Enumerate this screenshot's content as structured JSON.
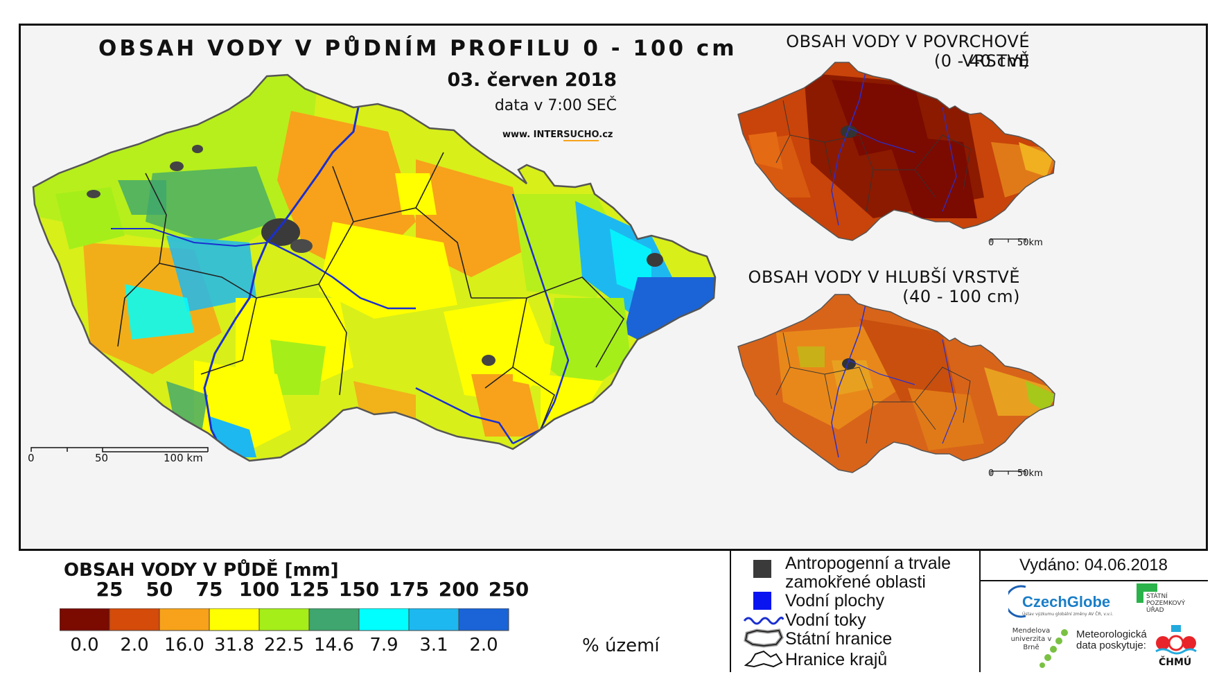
{
  "main_map": {
    "title": "OBSAH VODY V PŮDNÍM PROFILU 0 - 100 cm",
    "date": "03. červen 2018",
    "time_note": "data v 7:00 SEČ",
    "website_prefix": "www. INTER",
    "website_highlight": "SUCHO",
    "website_suffix": ".cz",
    "scale": {
      "tick_0": "0",
      "tick_50": "50",
      "tick_100": "100 km"
    }
  },
  "surface_map": {
    "title": "OBSAH VODY V POVRCHOVÉ VRSTVĚ",
    "range": "(0 - 40 cm)",
    "scale": {
      "tick_0": "0",
      "tick_50": "50km"
    }
  },
  "deep_map": {
    "title": "OBSAH VODY V HLUBŠÍ VRSTVĚ",
    "range": "(40 - 100 cm)",
    "scale": {
      "tick_0": "0",
      "tick_50": "50km"
    }
  },
  "legend": {
    "title": "OBSAH VODY V PŮDĚ [mm]",
    "thresholds": [
      "25",
      "50",
      "75",
      "100",
      "125",
      "150",
      "175",
      "200",
      "250"
    ],
    "class_colors": [
      "#7b0a00",
      "#d44b0a",
      "#f7a21a",
      "#ffff00",
      "#a5ee1a",
      "#3ea66e",
      "#00ffff",
      "#1eb8f0",
      "#1a64d8"
    ],
    "percent_values": [
      "0.0",
      "2.0",
      "16.0",
      "31.8",
      "22.5",
      "14.6",
      "7.9",
      "3.1",
      "2.0"
    ],
    "percent_unit": "% území"
  },
  "symbols": {
    "anthropogenic": "Antropogenní a trvale zamokřené oblasti",
    "water_bodies": "Vodní plochy",
    "rivers": "Vodní toky",
    "state_border": "Státní hranice",
    "region_borders": "Hranice krajů"
  },
  "issued": "Vydáno: 04.06.2018",
  "logos": {
    "czechglobe": "CzechGlobe",
    "czechglobe_sub": "Ústav výzkumu globální změny AV ČR, v.v.i.",
    "spu": "STÁTNÍ POZEMKOVÝ ÚŘAD",
    "mendelu": "Mendelova univerzita v Brně",
    "met_note": "Meteorologická data poskytuje:",
    "chmu": "ČHMÚ"
  }
}
